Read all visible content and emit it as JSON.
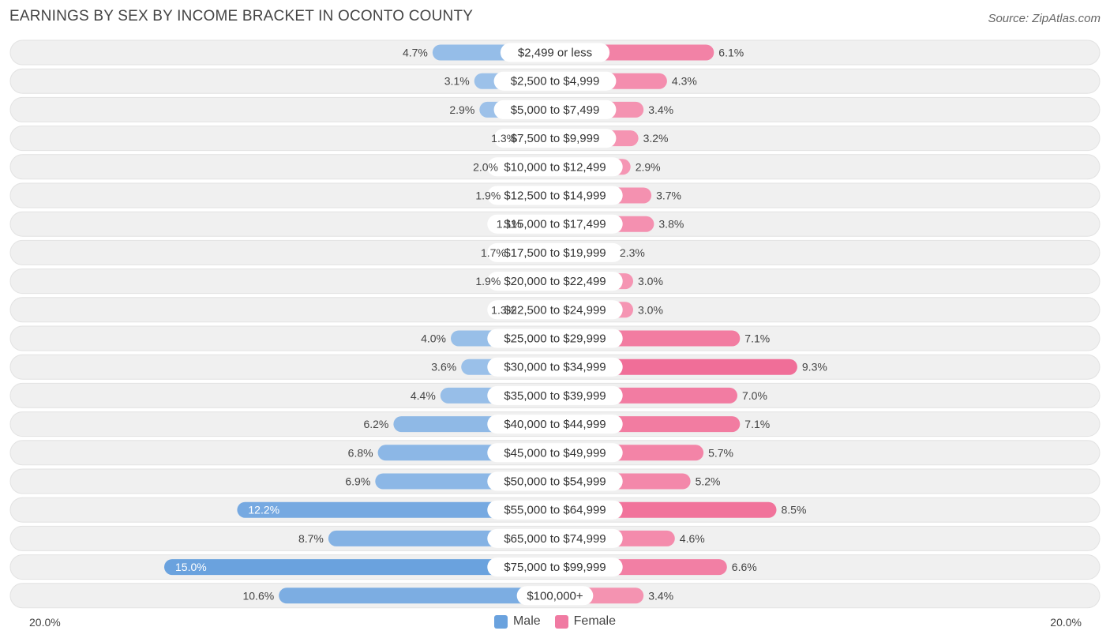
{
  "header": {
    "title": "EARNINGS BY SEX BY INCOME BRACKET IN OCONTO COUNTY",
    "source": "Source: ZipAtlas.com"
  },
  "axis": {
    "left_label": "20.0%",
    "right_label": "20.0%"
  },
  "legend": {
    "male_label": "Male",
    "female_label": "Female"
  },
  "colors": {
    "male_light": "#a9c9ec",
    "male_strong": "#6aa2de",
    "female_light": "#f7a8c0",
    "female_strong": "#f06e98",
    "row_bg": "#f0f0f0"
  },
  "chart_data": {
    "type": "bar",
    "orientation": "horizontal-diverging",
    "title": "EARNINGS BY SEX BY INCOME BRACKET IN OCONTO COUNTY",
    "xlim": [
      -20,
      20
    ],
    "categories": [
      "$2,499 or less",
      "$2,500 to $4,999",
      "$5,000 to $7,499",
      "$7,500 to $9,999",
      "$10,000 to $12,499",
      "$12,500 to $14,999",
      "$15,000 to $17,499",
      "$17,500 to $19,999",
      "$20,000 to $22,499",
      "$22,500 to $24,999",
      "$25,000 to $29,999",
      "$30,000 to $34,999",
      "$35,000 to $39,999",
      "$40,000 to $44,999",
      "$45,000 to $49,999",
      "$50,000 to $54,999",
      "$55,000 to $64,999",
      "$65,000 to $74,999",
      "$75,000 to $99,999",
      "$100,000+"
    ],
    "series": [
      {
        "name": "Male",
        "values": [
          4.7,
          3.1,
          2.9,
          1.3,
          2.0,
          1.9,
          1.1,
          1.7,
          1.9,
          1.3,
          4.0,
          3.6,
          4.4,
          6.2,
          6.8,
          6.9,
          12.2,
          8.7,
          15.0,
          10.6
        ]
      },
      {
        "name": "Female",
        "values": [
          6.1,
          4.3,
          3.4,
          3.2,
          2.9,
          3.7,
          3.8,
          2.3,
          3.0,
          3.0,
          7.1,
          9.3,
          7.0,
          7.1,
          5.7,
          5.2,
          8.5,
          4.6,
          6.6,
          3.4
        ]
      }
    ],
    "value_labels_male": [
      "4.7%",
      "3.1%",
      "2.9%",
      "1.3%",
      "2.0%",
      "1.9%",
      "1.1%",
      "1.7%",
      "1.9%",
      "1.3%",
      "4.0%",
      "3.6%",
      "4.4%",
      "6.2%",
      "6.8%",
      "6.9%",
      "12.2%",
      "8.7%",
      "15.0%",
      "10.6%"
    ],
    "value_labels_female": [
      "6.1%",
      "4.3%",
      "3.4%",
      "3.2%",
      "2.9%",
      "3.7%",
      "3.8%",
      "2.3%",
      "3.0%",
      "3.0%",
      "7.1%",
      "9.3%",
      "7.0%",
      "7.1%",
      "5.7%",
      "5.2%",
      "8.5%",
      "4.6%",
      "6.6%",
      "3.4%"
    ]
  }
}
